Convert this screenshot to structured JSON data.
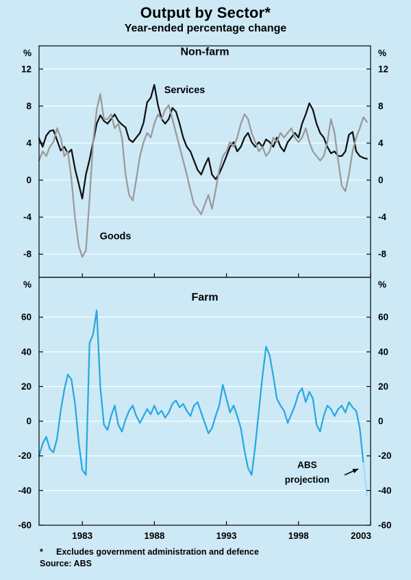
{
  "page": {
    "background": "#cde9f6",
    "title": "Output by Sector*",
    "subtitle": "Year-ended percentage change",
    "footnote_marker": "*",
    "footnote_text": "Excludes government administration and defence",
    "source": "Source: ABS"
  },
  "chart_data": [
    {
      "type": "line",
      "unit_left": "%",
      "unit_right": "%",
      "xlim": [
        1980,
        2003
      ],
      "xticks": [
        1983,
        1988,
        1993,
        1998,
        2003
      ],
      "ylim": [
        -10.5,
        14.5
      ],
      "yticks": [
        12,
        8,
        4,
        0,
        -4,
        -8
      ],
      "grid_color": "#ffffff",
      "series": [
        {
          "name": "Services",
          "color": "#111111",
          "width": 2.3,
          "x_start": 1980,
          "x_step": 0.25,
          "values": [
            4.5,
            3.6,
            4.8,
            5.3,
            5.4,
            4.3,
            3.2,
            3.6,
            2.9,
            3.3,
            1.2,
            -0.4,
            -2.0,
            0.6,
            2.2,
            4.1,
            6.1,
            7.0,
            6.4,
            6.1,
            6.6,
            7.1,
            6.4,
            6.0,
            5.7,
            4.4,
            4.1,
            4.6,
            5.1,
            6.2,
            8.4,
            8.9,
            10.3,
            8.1,
            6.6,
            6.1,
            6.6,
            7.8,
            7.4,
            6.1,
            4.6,
            3.6,
            3.1,
            2.1,
            1.1,
            0.6,
            1.6,
            2.4,
            0.6,
            0.1,
            0.7,
            1.6,
            2.6,
            3.6,
            4.1,
            3.1,
            3.6,
            4.6,
            5.1,
            4.1,
            3.6,
            4.1,
            3.6,
            4.4,
            4.1,
            3.6,
            4.6,
            3.6,
            3.1,
            4.1,
            4.6,
            5.1,
            4.6,
            6.1,
            7.1,
            8.3,
            7.6,
            6.1,
            5.1,
            4.6,
            3.6,
            2.9,
            3.1,
            2.6,
            2.6,
            3.1,
            4.9,
            5.2,
            3.1,
            2.6,
            2.4,
            2.3
          ]
        },
        {
          "name": "Goods",
          "color": "#9a9a9a",
          "width": 2.3,
          "x_start": 1980,
          "x_step": 0.25,
          "values": [
            2.1,
            3.1,
            2.6,
            3.6,
            4.1,
            5.6,
            4.6,
            2.6,
            3.1,
            0.1,
            -4.1,
            -7.1,
            -8.3,
            -7.6,
            -2.1,
            4.1,
            7.6,
            9.3,
            6.6,
            6.6,
            7.1,
            5.6,
            6.1,
            4.6,
            0.6,
            -1.6,
            -2.2,
            0.1,
            2.6,
            4.1,
            5.1,
            4.6,
            6.1,
            7.1,
            6.6,
            7.6,
            8.1,
            6.6,
            5.1,
            3.6,
            2.1,
            0.6,
            -1.1,
            -2.6,
            -3.1,
            -3.7,
            -2.6,
            -1.6,
            -3.1,
            -1.1,
            1.1,
            2.6,
            3.1,
            4.1,
            3.6,
            4.6,
            6.1,
            7.1,
            6.6,
            5.1,
            4.1,
            3.1,
            3.6,
            2.6,
            3.1,
            4.6,
            4.1,
            5.1,
            4.6,
            5.1,
            5.6,
            4.6,
            4.1,
            4.6,
            5.6,
            4.1,
            3.1,
            2.6,
            2.1,
            2.6,
            4.1,
            6.6,
            5.1,
            2.1,
            -0.6,
            -1.2,
            0.6,
            3.1,
            4.6,
            5.6,
            6.8,
            6.3
          ]
        }
      ],
      "labels": [
        {
          "text": "Non-farm",
          "x": 1991.5,
          "y": 13.5,
          "size": 16
        },
        {
          "text": "Services",
          "x": 1990.1,
          "y": 9.4,
          "size": 14.5
        },
        {
          "text": "Goods",
          "x": 1985.3,
          "y": -6.4,
          "size": 14.5
        }
      ]
    },
    {
      "type": "line",
      "unit_left": "%",
      "unit_right": "%",
      "xlim": [
        1980,
        2003
      ],
      "xticks": [
        1983,
        1988,
        1993,
        1998,
        2003
      ],
      "ylim": [
        -60,
        83
      ],
      "yticks": [
        60,
        40,
        20,
        0,
        -20,
        -40,
        -60
      ],
      "grid_color": "#ffffff",
      "series": [
        {
          "name": "Farm",
          "color": "#29a8e0",
          "width": 2.3,
          "x_start": 1980,
          "x_step": 0.25,
          "projection_from": 2002.55,
          "projection_color": "#a7d9ef",
          "values": [
            -20,
            -13,
            -9,
            -16,
            -18,
            -10,
            6,
            18,
            27,
            24,
            10,
            -12,
            -28,
            -31,
            45,
            50,
            64,
            20,
            -2,
            -5,
            3,
            9,
            -2,
            -6,
            1,
            6,
            9,
            3,
            -1,
            3,
            7,
            4,
            9,
            4,
            6,
            2,
            5,
            10,
            12,
            8,
            10,
            6,
            3,
            9,
            11,
            5,
            -1,
            -7,
            -4,
            3,
            9,
            21,
            13,
            5,
            9,
            3,
            -4,
            -17,
            -27,
            -31,
            -14,
            6,
            26,
            43,
            38,
            26,
            13,
            9,
            6,
            -1,
            4,
            9,
            16,
            19,
            11,
            17,
            13,
            -2,
            -6,
            3,
            9,
            7,
            3,
            7,
            9,
            5,
            11,
            8,
            6,
            -4,
            -24,
            -43
          ]
        }
      ],
      "labels": [
        {
          "text": "Farm",
          "x": 1991.5,
          "y": 69.5,
          "size": 16
        },
        {
          "text": "ABS",
          "x": 1998.6,
          "y": -27,
          "size": 13.5
        },
        {
          "text": "projection",
          "x": 1998.6,
          "y": -35.5,
          "size": 13.5
        }
      ],
      "arrow": {
        "x1": 2001.2,
        "y1": -31,
        "x2": 2002.15,
        "y2": -27.5
      }
    }
  ]
}
